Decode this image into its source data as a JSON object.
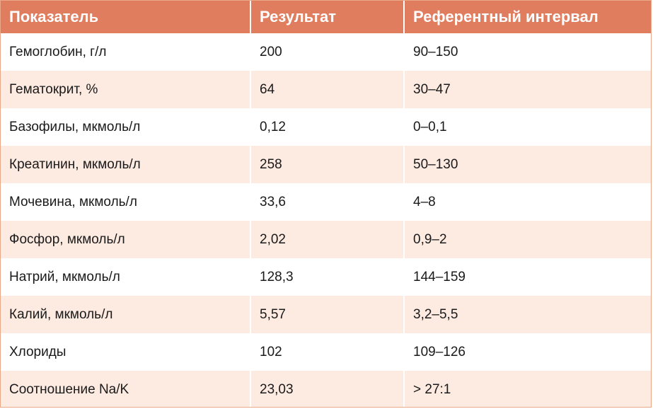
{
  "table": {
    "headers": [
      "Показатель",
      "Результат",
      "Референтный интервал"
    ],
    "rows": [
      [
        "Гемоглобин, г/л",
        "200",
        "90–150"
      ],
      [
        "Гематокрит, %",
        "64",
        "30–47"
      ],
      [
        "Базофилы, мкмоль/л",
        "0,12",
        "0–0,1"
      ],
      [
        "Креатинин, мкмоль/л",
        "258",
        "50–130"
      ],
      [
        "Мочевина, мкмоль/л",
        "33,6",
        "4–8"
      ],
      [
        "Фосфор, мкмоль/л",
        "2,02",
        "0,9–2"
      ],
      [
        "Натрий, мкмоль/л",
        "128,3",
        "144–159"
      ],
      [
        "Калий, мкмоль/л",
        "5,57",
        "3,2–5,5"
      ],
      [
        "Хлориды",
        "102",
        "109–126"
      ],
      [
        "Соотношение Na/K",
        "23,03",
        "> 27:1"
      ]
    ]
  },
  "colors": {
    "header_bg": "#e07d5e",
    "stripe_bg": "#fdeae1"
  }
}
